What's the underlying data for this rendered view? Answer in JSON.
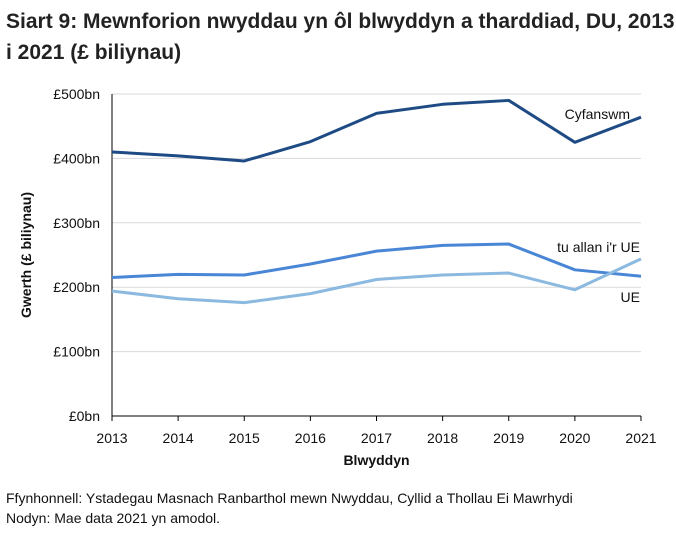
{
  "title": "Siart 9: Mewnforion nwyddau yn ôl blwyddyn a tharddiad, DU, 2013 i 2021 (£ biliynau)",
  "footnotes": {
    "source": "Ffynhonnell: Ystadegau Masnach Ranbarthol mewn Nwyddau, Cyllid a Thollau Ei Mawrhydi",
    "note": "Nodyn: Mae data 2021 yn amodol."
  },
  "chart_data": {
    "type": "line",
    "title": "Siart 9: Mewnforion nwyddau yn ôl blwyddyn a tharddiad, DU, 2013 i 2021 (£ biliynau)",
    "xlabel": "Blwyddyn",
    "ylabel": "Gwerth (£ biliynau)",
    "x": [
      "2013",
      "2014",
      "2015",
      "2016",
      "2017",
      "2018",
      "2019",
      "2020",
      "2021"
    ],
    "ylim": [
      0,
      500
    ],
    "yticks": [
      0,
      100,
      200,
      300,
      400,
      500
    ],
    "ytick_labels": [
      "£0bn",
      "£100bn",
      "£200bn",
      "£300bn",
      "£400bn",
      "£500bn"
    ],
    "grid": true,
    "legend": "inline labels at right",
    "series": [
      {
        "name": "Cyfanswm",
        "color": "#1f4b85",
        "values": [
          410,
          404,
          396,
          426,
          470,
          484,
          490,
          425,
          464
        ]
      },
      {
        "name": "tu allan i'r UE",
        "color": "#4a86d6",
        "values": [
          215,
          220,
          219,
          236,
          256,
          265,
          267,
          227,
          217
        ]
      },
      {
        "name": "UE",
        "color": "#8cb9e0",
        "values": [
          194,
          182,
          176,
          190,
          212,
          219,
          222,
          196,
          244
        ]
      }
    ]
  }
}
